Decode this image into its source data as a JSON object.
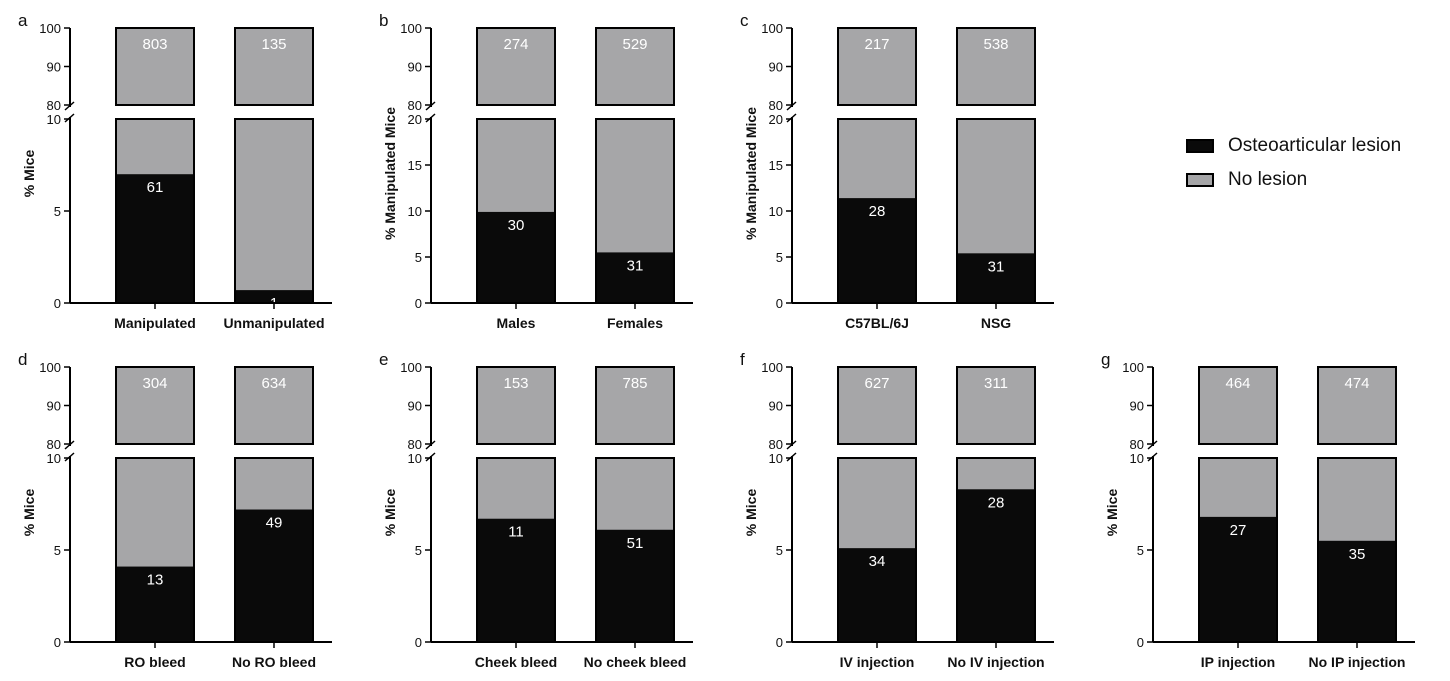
{
  "colors": {
    "lesion": "#0a0a0a",
    "no_lesion": "#a6a6a8",
    "outline": "#000000",
    "count_text": "#ffffff"
  },
  "legend": {
    "lesion_label": "Osteoarticular lesion",
    "no_lesion_label": "No lesion",
    "lesion_icon": "black-filled-square",
    "no_lesion_icon": "gray-filled-square"
  },
  "chart_data": [
    {
      "panel": "a",
      "type": "bar",
      "stacked": true,
      "broken_axis": true,
      "ylabel": "% Mice",
      "ylim_lower": [
        0,
        10
      ],
      "ylim_upper": [
        80,
        100
      ],
      "yticks_lower": [
        0,
        5,
        10
      ],
      "yticks_upper": [
        80,
        90,
        100
      ],
      "categories": [
        "Manipulated",
        "Unmanipulated"
      ],
      "series": [
        {
          "name": "Osteoarticular lesion",
          "values": [
            7.0,
            0.7
          ],
          "counts": [
            "61",
            "1"
          ]
        },
        {
          "name": "No lesion",
          "values": [
            93.0,
            99.3
          ],
          "counts": [
            "803",
            "135"
          ]
        }
      ]
    },
    {
      "panel": "b",
      "type": "bar",
      "stacked": true,
      "broken_axis": true,
      "ylabel": "% Manipulated Mice",
      "ylim_lower": [
        0,
        20
      ],
      "ylim_upper": [
        80,
        100
      ],
      "yticks_lower": [
        0,
        5,
        10,
        15,
        20
      ],
      "yticks_upper": [
        80,
        90,
        100
      ],
      "categories": [
        "Males",
        "Females"
      ],
      "series": [
        {
          "name": "Osteoarticular lesion",
          "values": [
            9.9,
            5.5
          ],
          "counts": [
            "30",
            "31"
          ]
        },
        {
          "name": "No lesion",
          "values": [
            90.1,
            94.5
          ],
          "counts": [
            "274",
            "529"
          ]
        }
      ]
    },
    {
      "panel": "c",
      "type": "bar",
      "stacked": true,
      "broken_axis": true,
      "ylabel": "% Manipulated Mice",
      "ylim_lower": [
        0,
        20
      ],
      "ylim_upper": [
        80,
        100
      ],
      "yticks_lower": [
        0,
        5,
        10,
        15,
        20
      ],
      "yticks_upper": [
        80,
        90,
        100
      ],
      "categories": [
        "C57BL/6J",
        "NSG"
      ],
      "series": [
        {
          "name": "Osteoarticular lesion",
          "values": [
            11.4,
            5.4
          ],
          "counts": [
            "28",
            "31"
          ]
        },
        {
          "name": "No lesion",
          "values": [
            88.6,
            94.6
          ],
          "counts": [
            "217",
            "538"
          ]
        }
      ]
    },
    {
      "panel": "d",
      "type": "bar",
      "stacked": true,
      "broken_axis": true,
      "ylabel": "% Mice",
      "ylim_lower": [
        0,
        10
      ],
      "ylim_upper": [
        80,
        100
      ],
      "yticks_lower": [
        0,
        5,
        10
      ],
      "yticks_upper": [
        80,
        90,
        100
      ],
      "categories": [
        "RO bleed",
        "No RO bleed"
      ],
      "series": [
        {
          "name": "Osteoarticular lesion",
          "values": [
            4.1,
            7.2
          ],
          "counts": [
            "13",
            "49"
          ]
        },
        {
          "name": "No lesion",
          "values": [
            95.9,
            92.8
          ],
          "counts": [
            "304",
            "634"
          ]
        }
      ]
    },
    {
      "panel": "e",
      "type": "bar",
      "stacked": true,
      "broken_axis": true,
      "ylabel": "% Mice",
      "ylim_lower": [
        0,
        10
      ],
      "ylim_upper": [
        80,
        100
      ],
      "yticks_lower": [
        0,
        5,
        10
      ],
      "yticks_upper": [
        80,
        90,
        100
      ],
      "categories": [
        "Cheek bleed",
        "No cheek bleed"
      ],
      "series": [
        {
          "name": "Osteoarticular lesion",
          "values": [
            6.7,
            6.1
          ],
          "counts": [
            "11",
            "51"
          ]
        },
        {
          "name": "No lesion",
          "values": [
            93.3,
            93.9
          ],
          "counts": [
            "153",
            "785"
          ]
        }
      ]
    },
    {
      "panel": "f",
      "type": "bar",
      "stacked": true,
      "broken_axis": true,
      "ylabel": "% Mice",
      "ylim_lower": [
        0,
        10
      ],
      "ylim_upper": [
        80,
        100
      ],
      "yticks_lower": [
        0,
        5,
        10
      ],
      "yticks_upper": [
        80,
        90,
        100
      ],
      "categories": [
        "IV injection",
        "No IV injection"
      ],
      "series": [
        {
          "name": "Osteoarticular lesion",
          "values": [
            5.1,
            8.3
          ],
          "counts": [
            "34",
            "28"
          ]
        },
        {
          "name": "No lesion",
          "values": [
            94.9,
            91.7
          ],
          "counts": [
            "627",
            "311"
          ]
        }
      ]
    },
    {
      "panel": "g",
      "type": "bar",
      "stacked": true,
      "broken_axis": true,
      "ylabel": "% Mice",
      "ylim_lower": [
        0,
        10
      ],
      "ylim_upper": [
        80,
        100
      ],
      "yticks_lower": [
        0,
        5,
        10
      ],
      "yticks_upper": [
        80,
        90,
        100
      ],
      "categories": [
        "IP injection",
        "No IP injection"
      ],
      "series": [
        {
          "name": "Osteoarticular lesion",
          "values": [
            6.8,
            5.5
          ],
          "counts": [
            "27",
            "35"
          ]
        },
        {
          "name": "No lesion",
          "values": [
            93.2,
            94.5
          ],
          "counts": [
            "464",
            "474"
          ]
        }
      ]
    }
  ]
}
